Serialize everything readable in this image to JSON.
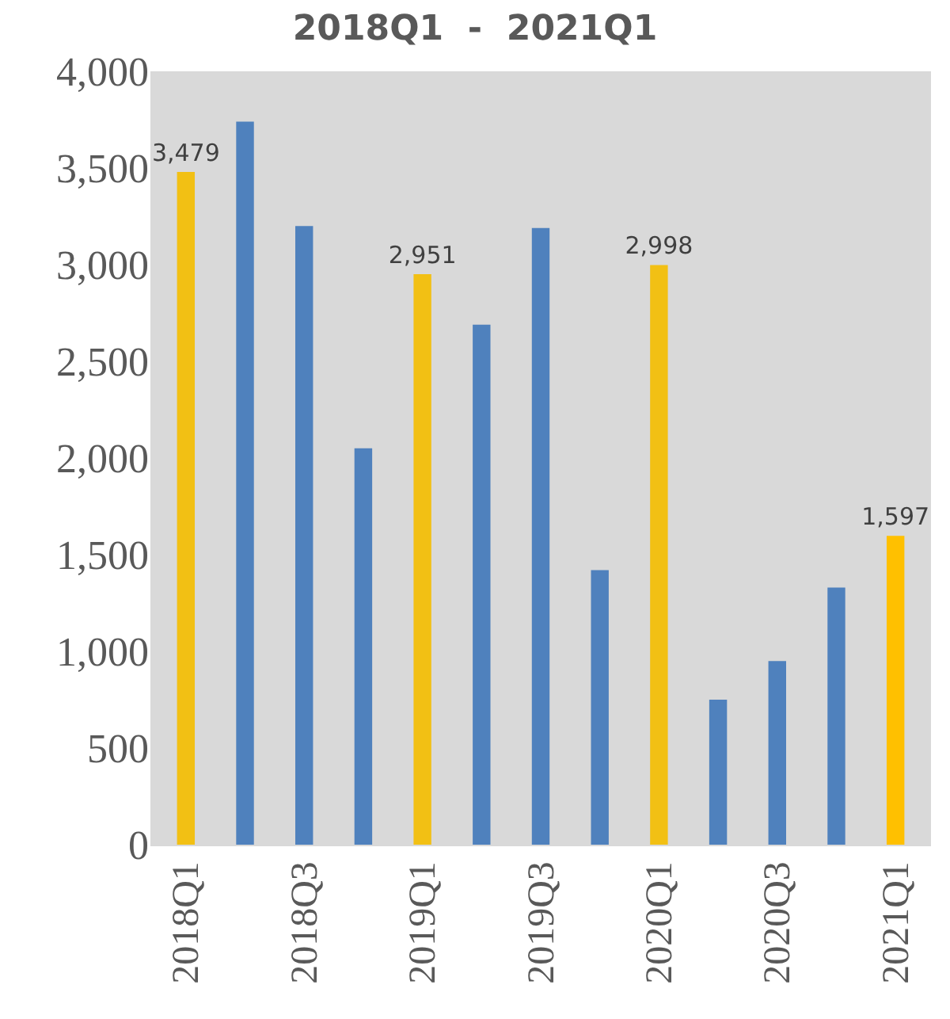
{
  "chart_data": {
    "type": "bar",
    "title": "2018Q1  -  2021Q1",
    "categories": [
      "2018Q1",
      null,
      "2018Q3",
      null,
      "2019Q1",
      null,
      "2019Q3",
      null,
      "2020Q1",
      null,
      "2020Q3",
      null,
      "2021Q1"
    ],
    "values": [
      3479,
      3740,
      3200,
      2050,
      2951,
      2690,
      3190,
      1420,
      2998,
      750,
      950,
      1330,
      1597
    ],
    "colors": [
      "#f2c014",
      "#4f81bd",
      "#4f81bd",
      "#4f81bd",
      "#f2c014",
      "#4f81bd",
      "#4f81bd",
      "#4f81bd",
      "#f2c014",
      "#4f81bd",
      "#4f81bd",
      "#4f81bd",
      "#ffc000"
    ],
    "value_labels": [
      "3,479",
      null,
      null,
      null,
      "2,951",
      null,
      null,
      null,
      "2,998",
      null,
      null,
      null,
      "1,597"
    ],
    "ylim": [
      0,
      4000
    ],
    "yticks": [
      {
        "value": 0,
        "label": "0"
      },
      {
        "value": 500,
        "label": "500"
      },
      {
        "value": 1000,
        "label": "1,000"
      },
      {
        "value": 1500,
        "label": "1,500"
      },
      {
        "value": 2000,
        "label": "2,000"
      },
      {
        "value": 2500,
        "label": "2,500"
      },
      {
        "value": 3000,
        "label": "3,000"
      },
      {
        "value": 3500,
        "label": "3,500"
      },
      {
        "value": 4000,
        "label": "4,000"
      }
    ],
    "grid": false,
    "legend": false
  }
}
